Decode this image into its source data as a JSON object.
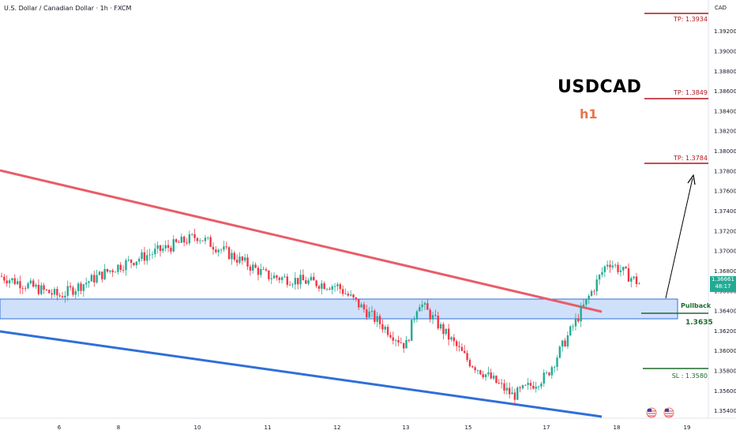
{
  "header": {
    "title": "U.S. Dollar / Canadian Dollar · 1h · FXCM"
  },
  "symbol": "USDCAD",
  "timeframe": "h1",
  "currency_label": "CAD",
  "last_price": {
    "price": "1.36661",
    "countdown": "48:17",
    "color": "#22ab94"
  },
  "colors": {
    "up": "#22ab94",
    "down": "#f23645",
    "resistance": "#e85d69",
    "support": "#2f6fd8",
    "zone_fill": "#cfe0fb",
    "zone_border": "#2f6fd8",
    "target": "#b2141b",
    "sl": "#1f6b2c"
  },
  "annotations": {
    "tp1": "TP: 1.3934",
    "tp2": "TP: 1.3849",
    "tp3": "TP: 1.3784",
    "pullback": "Pullback",
    "pullback_level": "1.3635",
    "sl": "SL : 1.3580"
  },
  "icons": [
    "us-flag-icon",
    "us-flag-icon"
  ],
  "chart_data": {
    "type": "candlestick",
    "title": "U.S. Dollar / Canadian Dollar · 1h · FXCM",
    "x_ticks": [
      "6",
      "8",
      "10",
      "11",
      "12",
      "13",
      "15",
      "17",
      "18",
      "19"
    ],
    "y_ticks": [
      "1.39200",
      "1.39000",
      "1.38800",
      "1.38600",
      "1.38400",
      "1.38200",
      "1.38000",
      "1.37800",
      "1.37600",
      "1.37400",
      "1.37200",
      "1.37000",
      "1.36800",
      "1.36600",
      "1.36400",
      "1.36200",
      "1.36000",
      "1.35800",
      "1.35600",
      "1.35400"
    ],
    "ylim": [
      1.3535,
      1.3945
    ],
    "key_points": [
      {
        "x": "start",
        "y": 1.3675
      },
      {
        "x": "6",
        "y": 1.3655
      },
      {
        "x": "8",
        "y": 1.3685
      },
      {
        "x": "10",
        "y": 1.3715
      },
      {
        "x": "11",
        "y": 1.3675
      },
      {
        "x": "12",
        "y": 1.3665
      },
      {
        "x": "13",
        "y": 1.3605
      },
      {
        "x": "13.3",
        "y": 1.365
      },
      {
        "x": "15",
        "y": 1.359
      },
      {
        "x": "16",
        "y": 1.3555
      },
      {
        "x": "17",
        "y": 1.3575
      },
      {
        "x": "17.8",
        "y": 1.369
      },
      {
        "x": "18.3",
        "y": 1.3666
      }
    ],
    "last_price": 1.36661,
    "levels": {
      "tp1": 1.3934,
      "tp2": 1.3849,
      "tp3": 1.3784,
      "pullback": 1.3635,
      "sl": 1.358,
      "zone": [
        1.363,
        1.365
      ]
    },
    "trendlines": [
      {
        "name": "resistance",
        "from": {
          "x": "start",
          "y": 1.3776
        },
        "to": {
          "x": "17.7",
          "y": 1.3635
        }
      },
      {
        "name": "support",
        "from": {
          "x": "start",
          "y": 1.362
        },
        "to": {
          "x": "17.7",
          "y": 1.3545
        }
      }
    ],
    "grid": false
  }
}
